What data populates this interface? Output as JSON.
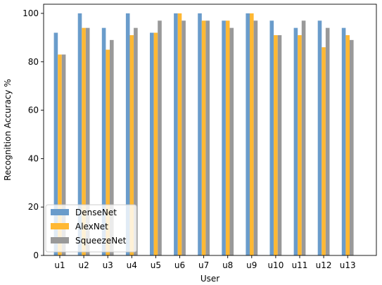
{
  "chart_data": {
    "type": "bar",
    "xlabel": "User",
    "ylabel": "Recognition Accuracy %",
    "ylim": [
      0,
      100
    ],
    "yticks": [
      0,
      20,
      40,
      60,
      80,
      100
    ],
    "categories": [
      "u1",
      "u2",
      "u3",
      "u4",
      "u5",
      "u6",
      "u7",
      "u8",
      "u9",
      "u10",
      "u11",
      "u12",
      "u13"
    ],
    "series": [
      {
        "name": "DenseNet",
        "color": "#6a9ccb",
        "values": [
          92,
          100,
          94,
          100,
          92,
          100,
          100,
          97,
          100,
          97,
          94,
          97,
          94
        ]
      },
      {
        "name": "AlexNet",
        "color": "#ffb833",
        "values": [
          83,
          94,
          85,
          91,
          92,
          100,
          97,
          97,
          100,
          91,
          91,
          86,
          91
        ]
      },
      {
        "name": "SqueezeNet",
        "color": "#999999",
        "values": [
          83,
          94,
          89,
          94,
          97,
          97,
          97,
          94,
          97,
          91,
          97,
          94,
          89
        ]
      }
    ],
    "legend_position": "lower-left",
    "grid": false
  }
}
